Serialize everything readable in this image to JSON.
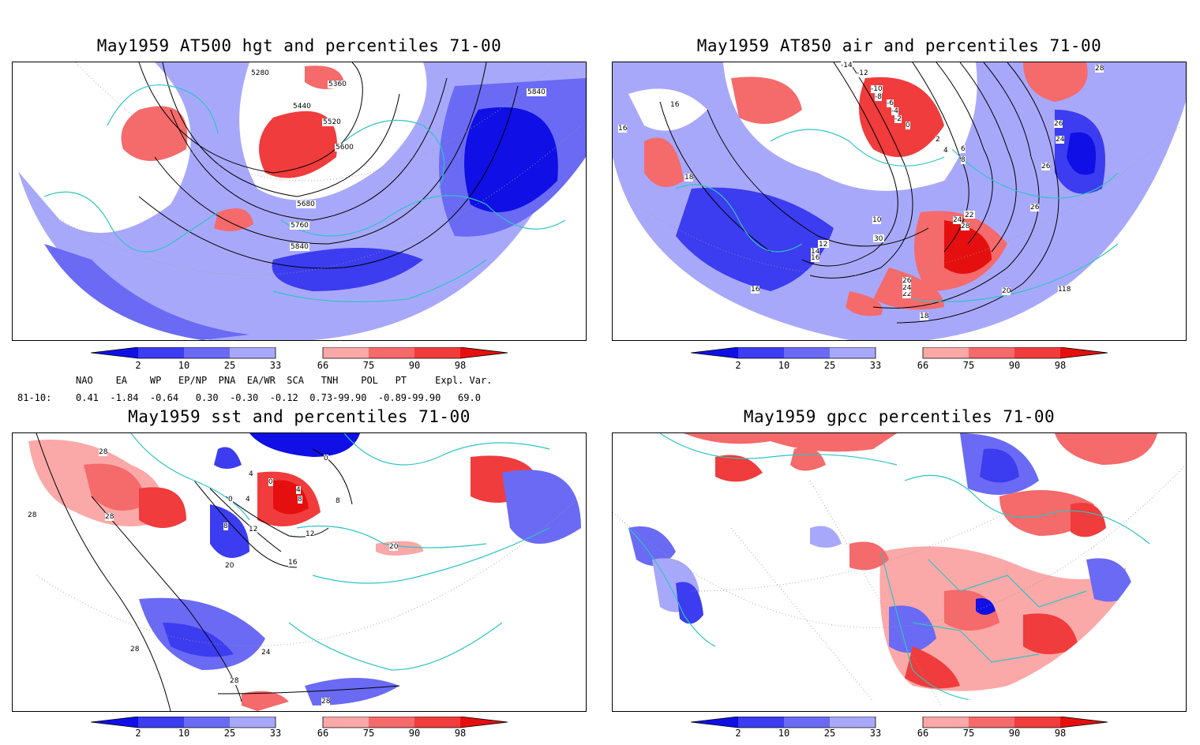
{
  "titles": {
    "p1": "May1959 AT500 hgt and percentiles 71-00",
    "p2": "May1959 AT850 air and percentiles 71-00",
    "p3": "May1959 sst and percentiles 71-00",
    "p4": "May1959 gpcc percentiles 71-00"
  },
  "colorbar": {
    "labels": [
      "2",
      "10",
      "25",
      "33",
      "66",
      "75",
      "90",
      "98"
    ],
    "colors": {
      "b1": "#0f0fe6",
      "b2": "#3c3cf0",
      "b3": "#6a6af5",
      "b4": "#a8a8fb",
      "r1": "#fba8a8",
      "r2": "#f56a6a",
      "r3": "#f03c3c",
      "r4": "#e60f0f"
    }
  },
  "stats": {
    "header": "NAO    EA    WP   EP/NP  PNA  EA/WR  SCA   TNH    POL   PT     Expl. Var.",
    "row_label": "81-10:",
    "row_values": "0.41  -1.84  -0.64   0.30  -0.30  -0.12  0.73-99.90  -0.89-99.90   69.0"
  },
  "contour_labels": {
    "p1": [
      "5280",
      "5360",
      "5440",
      "5520",
      "5600",
      "5680",
      "5760",
      "5840",
      "5840"
    ],
    "p2": [
      "-14",
      "-12",
      "-10",
      "-8",
      "-6",
      "-4",
      "-2",
      "0",
      "2",
      "4",
      "6",
      "8",
      "10",
      "12",
      "14",
      "16",
      "16",
      "16",
      "18",
      "18",
      "18",
      "20",
      "22",
      "24",
      "24",
      "26",
      "26",
      "26",
      "28",
      "28",
      "30",
      "22",
      "24",
      "26",
      "18",
      "16"
    ],
    "p3": [
      "28",
      "28",
      "28",
      "0",
      "0",
      "4",
      "8",
      "4",
      "8",
      "0",
      "4",
      "8",
      "12",
      "12",
      "16",
      "20",
      "20",
      "24",
      "28",
      "28",
      "28"
    ]
  }
}
